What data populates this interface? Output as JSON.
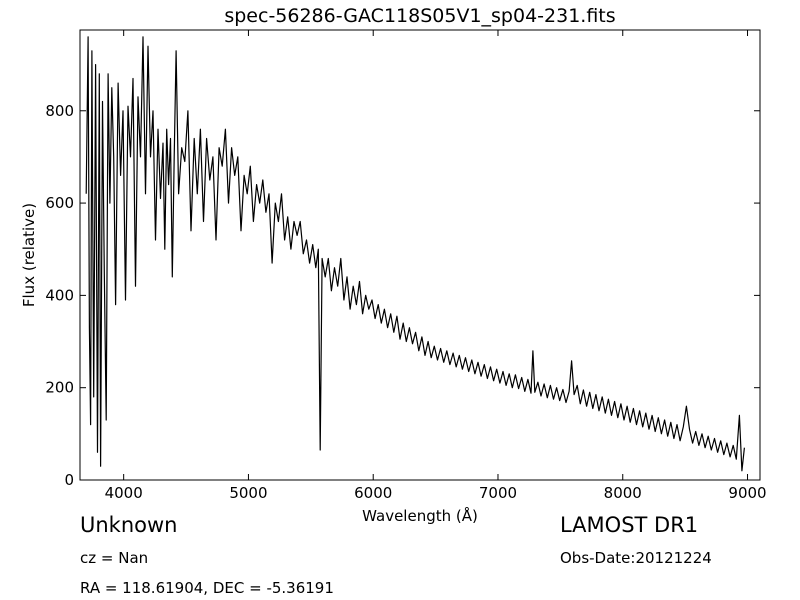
{
  "chart_data": {
    "type": "line",
    "title": "spec-56286-GAC118S05V1_sp04-231.fits",
    "xlabel": "Wavelength (Å)",
    "ylabel": "Flux (relative)",
    "xlim": [
      3650,
      9100
    ],
    "ylim": [
      0,
      975
    ],
    "x_ticks": [
      4000,
      5000,
      6000,
      7000,
      8000,
      9000
    ],
    "y_ticks": [
      0,
      200,
      400,
      600,
      800
    ],
    "grid": false,
    "series": [
      {
        "color": "#000000",
        "points": [
          [
            3700,
            620
          ],
          [
            3715,
            960
          ],
          [
            3725,
            330
          ],
          [
            3735,
            120
          ],
          [
            3745,
            930
          ],
          [
            3760,
            180
          ],
          [
            3775,
            900
          ],
          [
            3790,
            60
          ],
          [
            3805,
            880
          ],
          [
            3815,
            30
          ],
          [
            3830,
            820
          ],
          [
            3845,
            450
          ],
          [
            3860,
            130
          ],
          [
            3875,
            880
          ],
          [
            3890,
            600
          ],
          [
            3905,
            850
          ],
          [
            3920,
            700
          ],
          [
            3935,
            380
          ],
          [
            3955,
            860
          ],
          [
            3975,
            660
          ],
          [
            3995,
            800
          ],
          [
            4015,
            390
          ],
          [
            4035,
            810
          ],
          [
            4055,
            700
          ],
          [
            4075,
            870
          ],
          [
            4095,
            420
          ],
          [
            4115,
            830
          ],
          [
            4135,
            700
          ],
          [
            4155,
            960
          ],
          [
            4175,
            620
          ],
          [
            4195,
            940
          ],
          [
            4215,
            700
          ],
          [
            4235,
            800
          ],
          [
            4255,
            520
          ],
          [
            4275,
            760
          ],
          [
            4295,
            610
          ],
          [
            4315,
            730
          ],
          [
            4330,
            500
          ],
          [
            4345,
            760
          ],
          [
            4360,
            640
          ],
          [
            4375,
            740
          ],
          [
            4390,
            440
          ],
          [
            4405,
            700
          ],
          [
            4420,
            930
          ],
          [
            4440,
            620
          ],
          [
            4465,
            720
          ],
          [
            4490,
            690
          ],
          [
            4515,
            800
          ],
          [
            4540,
            540
          ],
          [
            4565,
            740
          ],
          [
            4590,
            620
          ],
          [
            4615,
            760
          ],
          [
            4640,
            560
          ],
          [
            4665,
            740
          ],
          [
            4690,
            650
          ],
          [
            4715,
            700
          ],
          [
            4740,
            520
          ],
          [
            4765,
            720
          ],
          [
            4790,
            680
          ],
          [
            4815,
            760
          ],
          [
            4840,
            600
          ],
          [
            4865,
            720
          ],
          [
            4890,
            660
          ],
          [
            4915,
            700
          ],
          [
            4940,
            540
          ],
          [
            4965,
            660
          ],
          [
            4990,
            620
          ],
          [
            5015,
            680
          ],
          [
            5040,
            560
          ],
          [
            5065,
            640
          ],
          [
            5090,
            600
          ],
          [
            5115,
            650
          ],
          [
            5140,
            580
          ],
          [
            5165,
            620
          ],
          [
            5190,
            470
          ],
          [
            5215,
            600
          ],
          [
            5240,
            560
          ],
          [
            5265,
            620
          ],
          [
            5290,
            520
          ],
          [
            5315,
            570
          ],
          [
            5340,
            500
          ],
          [
            5365,
            560
          ],
          [
            5390,
            530
          ],
          [
            5415,
            560
          ],
          [
            5440,
            490
          ],
          [
            5465,
            520
          ],
          [
            5490,
            470
          ],
          [
            5515,
            510
          ],
          [
            5540,
            460
          ],
          [
            5560,
            500
          ],
          [
            5575,
            65
          ],
          [
            5590,
            480
          ],
          [
            5615,
            440
          ],
          [
            5640,
            480
          ],
          [
            5665,
            410
          ],
          [
            5690,
            460
          ],
          [
            5715,
            420
          ],
          [
            5740,
            480
          ],
          [
            5765,
            390
          ],
          [
            5790,
            440
          ],
          [
            5815,
            370
          ],
          [
            5840,
            420
          ],
          [
            5865,
            380
          ],
          [
            5890,
            430
          ],
          [
            5915,
            360
          ],
          [
            5940,
            400
          ],
          [
            5965,
            370
          ],
          [
            5990,
            390
          ],
          [
            6015,
            350
          ],
          [
            6040,
            380
          ],
          [
            6065,
            340
          ],
          [
            6090,
            370
          ],
          [
            6115,
            330
          ],
          [
            6140,
            360
          ],
          [
            6165,
            320
          ],
          [
            6190,
            355
          ],
          [
            6215,
            305
          ],
          [
            6240,
            340
          ],
          [
            6265,
            300
          ],
          [
            6290,
            330
          ],
          [
            6315,
            295
          ],
          [
            6340,
            320
          ],
          [
            6365,
            280
          ],
          [
            6390,
            310
          ],
          [
            6415,
            270
          ],
          [
            6440,
            300
          ],
          [
            6465,
            265
          ],
          [
            6490,
            290
          ],
          [
            6515,
            260
          ],
          [
            6540,
            285
          ],
          [
            6565,
            255
          ],
          [
            6590,
            280
          ],
          [
            6615,
            250
          ],
          [
            6640,
            275
          ],
          [
            6665,
            245
          ],
          [
            6690,
            270
          ],
          [
            6715,
            240
          ],
          [
            6740,
            265
          ],
          [
            6765,
            235
          ],
          [
            6790,
            260
          ],
          [
            6815,
            230
          ],
          [
            6840,
            255
          ],
          [
            6865,
            225
          ],
          [
            6890,
            250
          ],
          [
            6915,
            220
          ],
          [
            6940,
            245
          ],
          [
            6965,
            215
          ],
          [
            6990,
            240
          ],
          [
            7015,
            210
          ],
          [
            7040,
            235
          ],
          [
            7065,
            205
          ],
          [
            7090,
            230
          ],
          [
            7115,
            200
          ],
          [
            7140,
            228
          ],
          [
            7165,
            198
          ],
          [
            7190,
            222
          ],
          [
            7215,
            192
          ],
          [
            7240,
            218
          ],
          [
            7265,
            188
          ],
          [
            7280,
            280
          ],
          [
            7295,
            190
          ],
          [
            7320,
            212
          ],
          [
            7345,
            182
          ],
          [
            7370,
            208
          ],
          [
            7395,
            178
          ],
          [
            7420,
            205
          ],
          [
            7445,
            175
          ],
          [
            7470,
            200
          ],
          [
            7495,
            172
          ],
          [
            7520,
            196
          ],
          [
            7545,
            168
          ],
          [
            7570,
            192
          ],
          [
            7590,
            258
          ],
          [
            7610,
            185
          ],
          [
            7635,
            205
          ],
          [
            7660,
            165
          ],
          [
            7685,
            195
          ],
          [
            7710,
            160
          ],
          [
            7735,
            190
          ],
          [
            7760,
            155
          ],
          [
            7785,
            185
          ],
          [
            7810,
            150
          ],
          [
            7835,
            180
          ],
          [
            7860,
            145
          ],
          [
            7885,
            175
          ],
          [
            7910,
            140
          ],
          [
            7935,
            170
          ],
          [
            7960,
            135
          ],
          [
            7985,
            165
          ],
          [
            8010,
            130
          ],
          [
            8035,
            160
          ],
          [
            8060,
            125
          ],
          [
            8085,
            155
          ],
          [
            8110,
            120
          ],
          [
            8135,
            150
          ],
          [
            8160,
            115
          ],
          [
            8185,
            145
          ],
          [
            8210,
            110
          ],
          [
            8235,
            140
          ],
          [
            8260,
            105
          ],
          [
            8285,
            135
          ],
          [
            8310,
            100
          ],
          [
            8335,
            130
          ],
          [
            8360,
            95
          ],
          [
            8385,
            125
          ],
          [
            8410,
            90
          ],
          [
            8435,
            120
          ],
          [
            8460,
            85
          ],
          [
            8485,
            115
          ],
          [
            8510,
            160
          ],
          [
            8535,
            110
          ],
          [
            8560,
            80
          ],
          [
            8585,
            105
          ],
          [
            8610,
            75
          ],
          [
            8635,
            100
          ],
          [
            8660,
            70
          ],
          [
            8685,
            95
          ],
          [
            8710,
            65
          ],
          [
            8735,
            90
          ],
          [
            8760,
            60
          ],
          [
            8785,
            85
          ],
          [
            8810,
            55
          ],
          [
            8835,
            80
          ],
          [
            8860,
            50
          ],
          [
            8885,
            75
          ],
          [
            8910,
            45
          ],
          [
            8935,
            140
          ],
          [
            8955,
            20
          ],
          [
            8975,
            70
          ]
        ]
      }
    ]
  },
  "info": {
    "object_class": "Unknown",
    "cz": "cz = Nan",
    "radec": "RA = 118.61904, DEC = -5.36191",
    "survey": "LAMOST DR1",
    "obs_date": "Obs-Date:20121224"
  }
}
